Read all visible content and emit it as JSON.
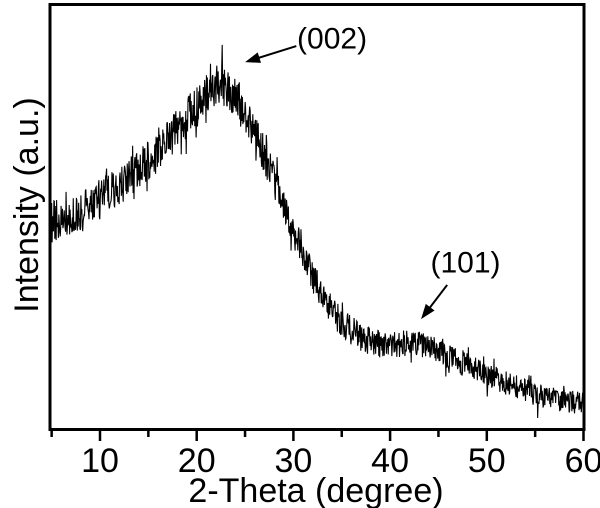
{
  "figure": {
    "background_color": "#ffffff",
    "frame_color": "#000000",
    "curve_color": "#000000",
    "text_color": "#000000"
  },
  "chart_data": {
    "type": "line",
    "title": "",
    "xlabel": "2-Theta (degree)",
    "ylabel": "Intensity (a.u.)",
    "xlim": [
      5,
      60
    ],
    "ylim": [
      0,
      100
    ],
    "x_ticks": [
      "10",
      "20",
      "30",
      "40",
      "50",
      "60"
    ],
    "x_tick_values": [
      10,
      20,
      30,
      40,
      50,
      60
    ],
    "x_minor_tick_values": [
      5,
      15,
      25,
      35,
      45,
      55
    ],
    "y_ticks": [],
    "grid": false,
    "legend": null,
    "series": [
      {
        "name": "XRD pattern",
        "style": "noisy-line",
        "x": [
          5,
          6,
          7,
          8,
          9,
          10,
          11,
          12,
          13,
          14,
          15,
          16,
          17,
          18,
          19,
          20,
          21,
          22,
          22.5,
          23,
          24,
          25,
          26,
          27,
          28,
          29,
          30,
          31,
          32,
          33,
          34,
          35,
          36,
          37,
          38,
          39,
          40,
          41,
          42,
          43,
          44,
          45,
          46,
          47,
          48,
          49,
          50,
          51,
          52,
          53,
          54,
          55,
          56,
          57,
          58,
          59,
          60
        ],
        "intensity_au": [
          48.8,
          49.8,
          50.7,
          51.9,
          53.1,
          54.3,
          55.7,
          57.3,
          59.2,
          61.1,
          63.3,
          65.4,
          67.8,
          70.6,
          73.5,
          76.3,
          78.9,
          80.8,
          81.3,
          80.8,
          78.4,
          74.9,
          70.1,
          64.7,
          58.8,
          52.4,
          46.2,
          40.5,
          35.8,
          31.5,
          27.7,
          24.9,
          23.0,
          21.6,
          20.4,
          19.7,
          19.7,
          19.9,
          20.1,
          19.9,
          19.0,
          18.0,
          17.1,
          15.9,
          14.7,
          13.7,
          12.6,
          11.6,
          10.7,
          9.7,
          8.8,
          8.1,
          7.3,
          6.9,
          6.4,
          6.2,
          5.7
        ],
        "noise": {
          "control_x": [
            5,
            15,
            21,
            24,
            30,
            40,
            50,
            60
          ],
          "amplitude_au": [
            5.0,
            4.7,
            5.2,
            4.8,
            3.8,
            3.2,
            2.9,
            2.7
          ],
          "spike_probability": 0.08,
          "spike_factor": 2.0
        }
      }
    ],
    "annotations": [
      {
        "label": "(002)",
        "text_x": 34.0,
        "text_y": 92.2,
        "arrow_tail_x": 30.3,
        "arrow_tail_y": 90.5,
        "arrow_tip_x": 25.0,
        "arrow_tip_y": 86.7
      },
      {
        "label": "(101)",
        "text_x": 47.8,
        "text_y": 39.1,
        "arrow_tail_x": 45.9,
        "arrow_tail_y": 33.9,
        "arrow_tip_x": 43.2,
        "arrow_tip_y": 25.8
      }
    ]
  }
}
